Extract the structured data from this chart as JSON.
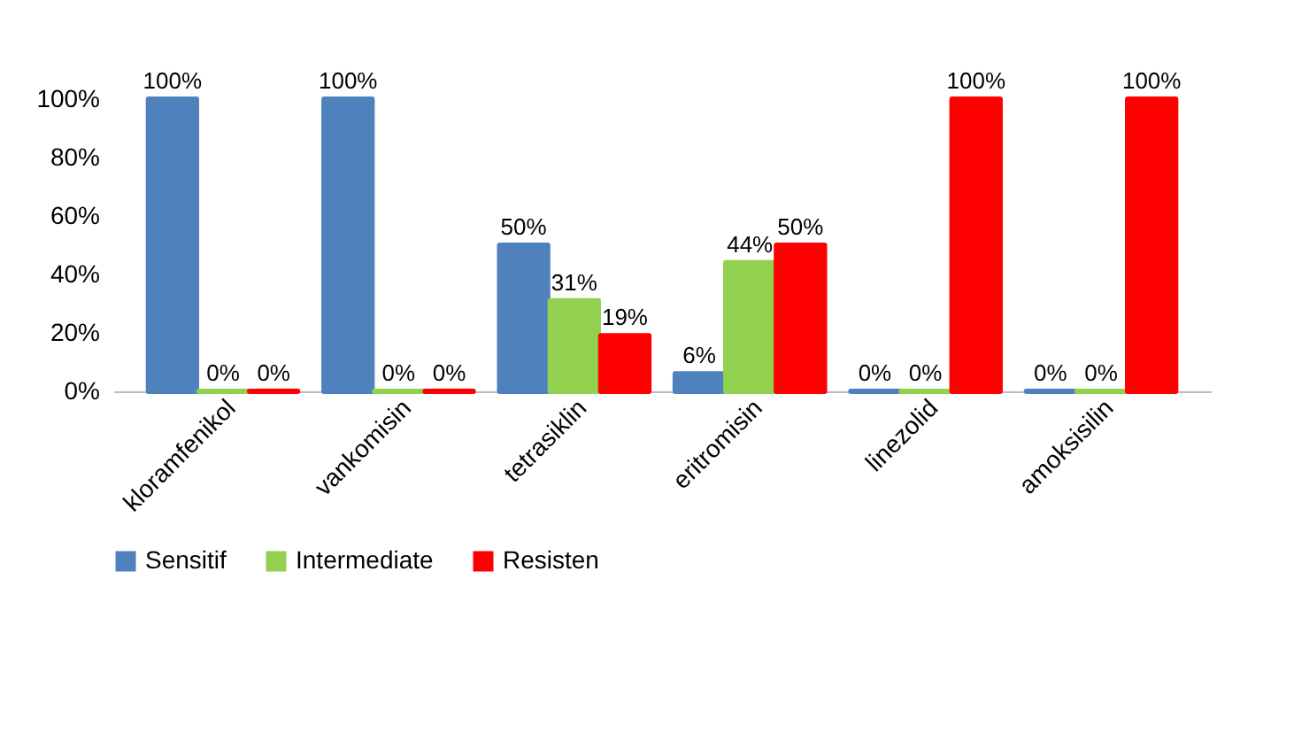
{
  "chart_data": {
    "type": "bar",
    "categories": [
      "kloramfenikol",
      "vankomisin",
      "tetrasiklin",
      "eritromisin",
      "linezolid",
      "amoksisilin"
    ],
    "series": [
      {
        "name": "Sensitif",
        "color": "#4f81bd",
        "values": [
          100,
          100,
          50,
          6,
          0,
          0
        ],
        "value_labels": [
          "100%",
          "100%",
          "50%",
          "6%",
          "0%",
          "0%"
        ]
      },
      {
        "name": "Intermediate",
        "color": "#92d050",
        "values": [
          0,
          0,
          31,
          44,
          0,
          0
        ],
        "value_labels": [
          "0%",
          "0%",
          "31%",
          "44%",
          "0%",
          "0%"
        ]
      },
      {
        "name": "Resisten",
        "color": "#ff0000",
        "values": [
          0,
          0,
          19,
          50,
          100,
          100
        ],
        "value_labels": [
          "0%",
          "0%",
          "19%",
          "50%",
          "100%",
          "100%"
        ]
      }
    ],
    "ylim": [
      0,
      100
    ],
    "yticks": [
      {
        "value": 0,
        "label": "0%"
      },
      {
        "value": 20,
        "label": "20%"
      },
      {
        "value": 40,
        "label": "40%"
      },
      {
        "value": 60,
        "label": "60%"
      },
      {
        "value": 80,
        "label": "80%"
      },
      {
        "value": 100,
        "label": "100%"
      }
    ],
    "grid": false,
    "legend": "bottom"
  }
}
